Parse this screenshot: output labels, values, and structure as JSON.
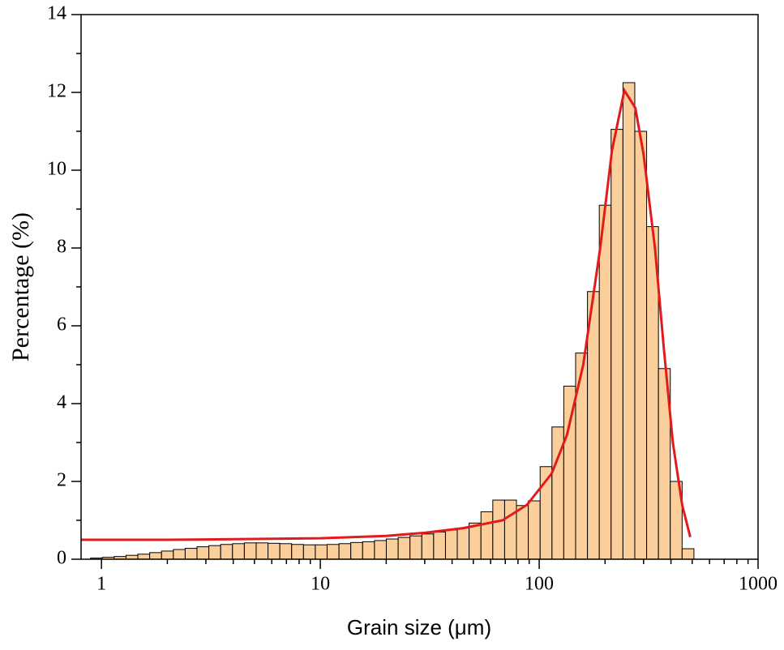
{
  "chart_data": {
    "type": "histogram",
    "xlabel": "Grain size (μm)",
    "ylabel": "Percentage (%)",
    "xscale": "log",
    "xlim": [
      0.807,
      1000
    ],
    "xticks": [
      1,
      10,
      100,
      1000
    ],
    "xminorticks": [
      2,
      3,
      4,
      5,
      6,
      7,
      8,
      9,
      20,
      30,
      40,
      50,
      60,
      70,
      80,
      90,
      200,
      300,
      400,
      500,
      600,
      700,
      800,
      900
    ],
    "ylim": [
      0,
      14
    ],
    "yticks": [
      0,
      2,
      4,
      6,
      8,
      10,
      12,
      14
    ],
    "yminorticks": [
      1,
      3,
      5,
      7,
      9,
      11,
      13
    ],
    "color": "#fbcf9c",
    "edgecolor": "#000000",
    "bins": [
      0.891,
      1.009,
      1.143,
      1.295,
      1.466,
      1.661,
      1.881,
      2.131,
      2.413,
      2.733,
      3.095,
      3.505,
      3.97,
      4.496,
      5.092,
      5.767,
      6.531,
      7.397,
      8.377,
      9.487,
      10.74,
      12.17,
      13.78,
      15.61,
      17.68,
      20.02,
      22.68,
      25.68,
      29.09,
      32.94,
      37.31,
      42.25,
      47.85,
      54.2,
      61.38,
      69.52,
      78.73,
      89.17,
      101,
      114.4,
      129.5,
      146.7,
      166.2,
      188.2,
      213.1,
      241.4,
      273.4,
      309.7,
      350.7,
      397.2,
      449.8,
      509.4
    ],
    "values": [
      0.03,
      0.05,
      0.07,
      0.1,
      0.13,
      0.17,
      0.21,
      0.25,
      0.28,
      0.32,
      0.35,
      0.38,
      0.4,
      0.42,
      0.42,
      0.41,
      0.4,
      0.38,
      0.37,
      0.37,
      0.38,
      0.4,
      0.43,
      0.45,
      0.48,
      0.52,
      0.56,
      0.6,
      0.65,
      0.7,
      0.75,
      0.8,
      0.93,
      1.22,
      1.52,
      1.52,
      1.38,
      1.5,
      2.38,
      3.4,
      4.45,
      5.3,
      6.88,
      9.1,
      11.05,
      12.25,
      11.0,
      8.55,
      4.9,
      2.0,
      0.27
    ],
    "fit": {
      "type": "line",
      "color": "#e31a1c",
      "x": [
        0.807,
        2,
        5,
        10,
        20,
        30,
        45,
        68,
        88,
        114,
        134,
        159,
        190,
        215,
        245,
        275,
        300,
        338,
        370,
        408,
        450,
        490
      ],
      "values": [
        0.5,
        0.5,
        0.52,
        0.54,
        0.6,
        0.68,
        0.8,
        1.0,
        1.4,
        2.2,
        3.2,
        5.0,
        8.0,
        10.5,
        12.05,
        11.6,
        10.4,
        8.0,
        5.5,
        3.0,
        1.4,
        0.57
      ]
    }
  }
}
